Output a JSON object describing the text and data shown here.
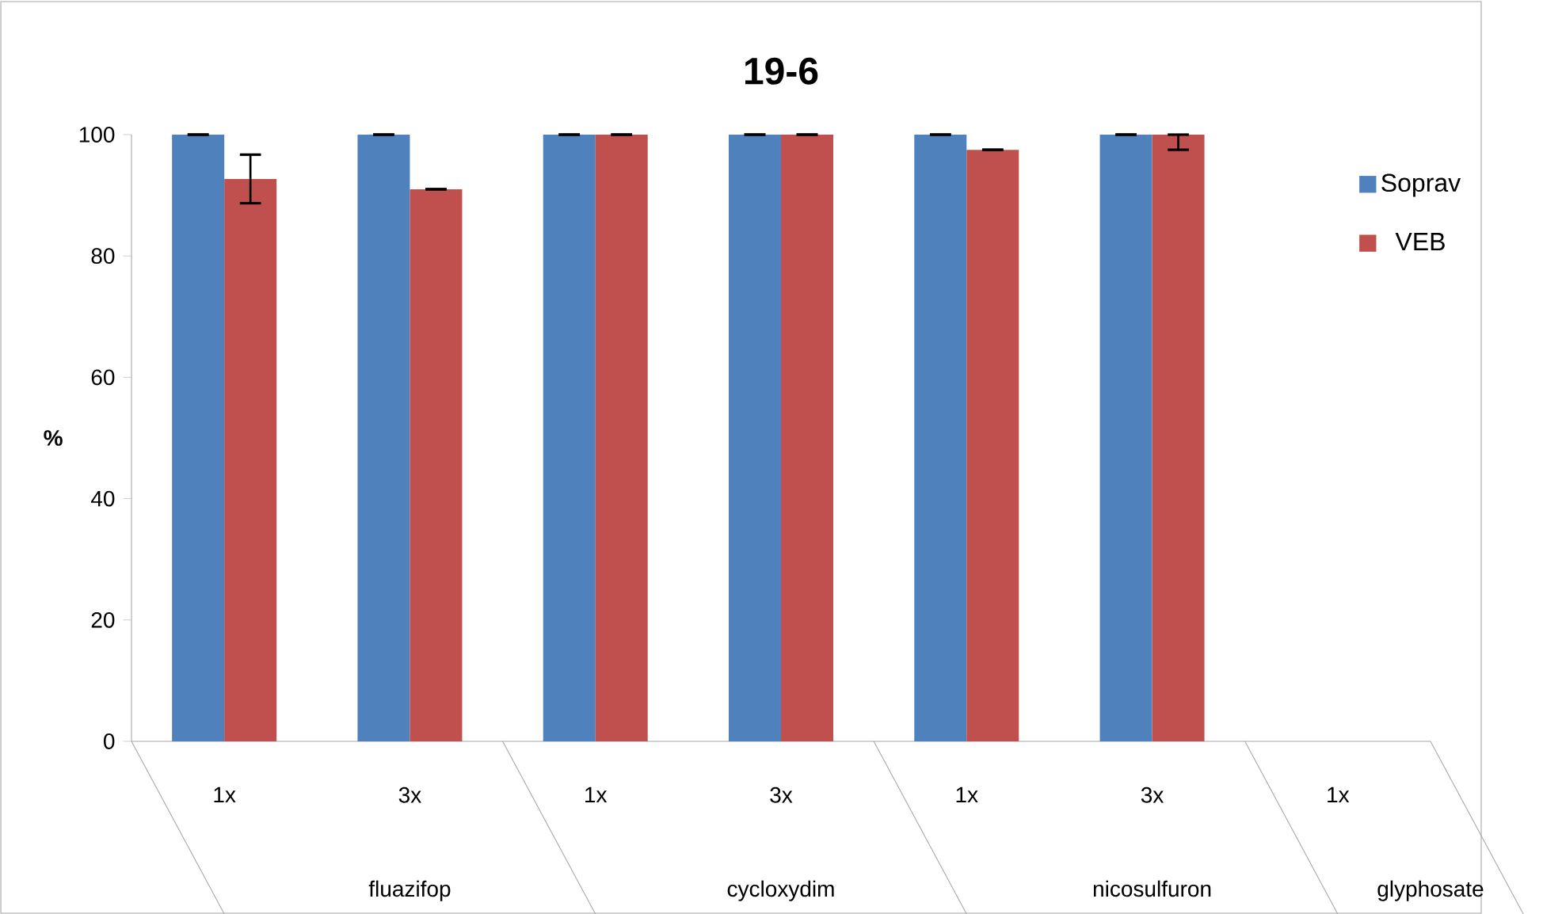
{
  "chart_data": {
    "type": "bar",
    "title": "19-6",
    "ylabel": "%",
    "categories": [
      "1x",
      "3x",
      "1x",
      "3x",
      "1x",
      "3x",
      "1x"
    ],
    "annotations": [
      "fluazifop",
      "cycloxydim",
      "nicosulfuron",
      "glyphosate"
    ],
    "series": [
      {
        "name": "Soprav",
        "color": "#4f81bd",
        "values": [
          100,
          100,
          100,
          100,
          100,
          100,
          null
        ],
        "errors": [
          0,
          0,
          0,
          0,
          0,
          0,
          null
        ]
      },
      {
        "name": "VEB",
        "color": "#c0504d",
        "values": [
          92.7,
          91,
          100,
          100,
          97.5,
          100,
          null
        ],
        "errors": [
          4,
          0,
          0,
          0,
          0,
          [
            97.5,
            100
          ],
          null
        ]
      }
    ],
    "ylim": [
      0,
      100
    ],
    "yticks": [
      0,
      20,
      40,
      60,
      80,
      100
    ],
    "legend": "top right",
    "grid": false
  }
}
